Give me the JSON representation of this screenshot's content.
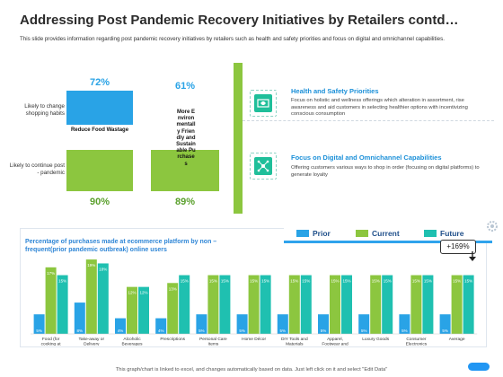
{
  "title": "Addressing Post Pandemic Recovery Initiatives by Retailers contd…",
  "subtitle": "This slide provides information regarding post pandemic recovery initiatives by retailers such as health and safety priorities and focus on digital and omnichannel capabilities.",
  "matrix": {
    "row_labels": [
      "Likely to change shopping habits",
      "Likely to continue post - pandemic"
    ],
    "col1": {
      "top_pct": "72%",
      "bottom_pct": "90%",
      "label": "Reduce Food Wastage",
      "color": "#29a3e6"
    },
    "col2": {
      "top_pct": "61%",
      "bottom_pct": "89%",
      "label": "More Environmentally Friendly and Sustainable Purchases",
      "color": "#8cc63f"
    }
  },
  "sections": [
    {
      "title": "Health and Safety Priorities",
      "text": "Focus on holistic and wellness offerings which alteration in assortment, rise awareness and aid customers in selecting healthier options with incentivizing conscious consumption",
      "icon": "health-box-icon"
    },
    {
      "title": "Focus on Digital and Omnichannel Capabilities",
      "text": "Offering customers various ways to shop in order (focusing on digital platforms) to generate loyalty",
      "icon": "network-icon"
    }
  ],
  "chart_data": {
    "type": "bar",
    "title": "Percentage of purchases made at ecommerce platform by non – frequent(prior pandemic outbreak) online users",
    "categories": [
      "Food (for cooking at home)",
      "Take-away or Delivery",
      "Alcoholic Beverages",
      "Prescriptions",
      "Personal Care Items",
      "Home Décor",
      "DIY Tools and Materials",
      "Apparel, Footwear and Accessories",
      "Luxury Goods",
      "Consumer Electronics",
      "Average"
    ],
    "series": [
      {
        "name": "Prior",
        "color": "#29a3e6",
        "values": [
          5,
          8,
          4,
          4,
          5,
          5,
          5,
          5,
          5,
          5,
          5
        ]
      },
      {
        "name": "Current",
        "color": "#8cc63f",
        "values": [
          17,
          19,
          12,
          13,
          15,
          15,
          15,
          15,
          15,
          15,
          15
        ]
      },
      {
        "name": "Future",
        "color": "#1fc0b0",
        "values": [
          15,
          18,
          12,
          15,
          15,
          15,
          15,
          15,
          15,
          15,
          15
        ]
      }
    ],
    "data_labels": [
      [
        "5%",
        "17%",
        "15%"
      ],
      [
        "8%",
        "19%",
        "18%"
      ],
      [
        "4%",
        "12%",
        "12%"
      ],
      [
        "4%",
        "13%",
        "15%"
      ],
      [
        "5%",
        "15%",
        "15%"
      ],
      [
        "5%",
        "15%",
        "15%"
      ],
      [
        "5%",
        "15%",
        "15%"
      ],
      [
        "5%",
        "15%",
        "15%"
      ],
      [
        "5%",
        "15%",
        "15%"
      ],
      [
        "5%",
        "15%",
        "15%"
      ],
      [
        "5%",
        "15%",
        "15%"
      ]
    ],
    "ylim": [
      0,
      22
    ],
    "callout": "+169%"
  },
  "footer": "This graph/chart is linked to excel, and changes automatically based on data. Just left click on it and select \"Edit Data\""
}
